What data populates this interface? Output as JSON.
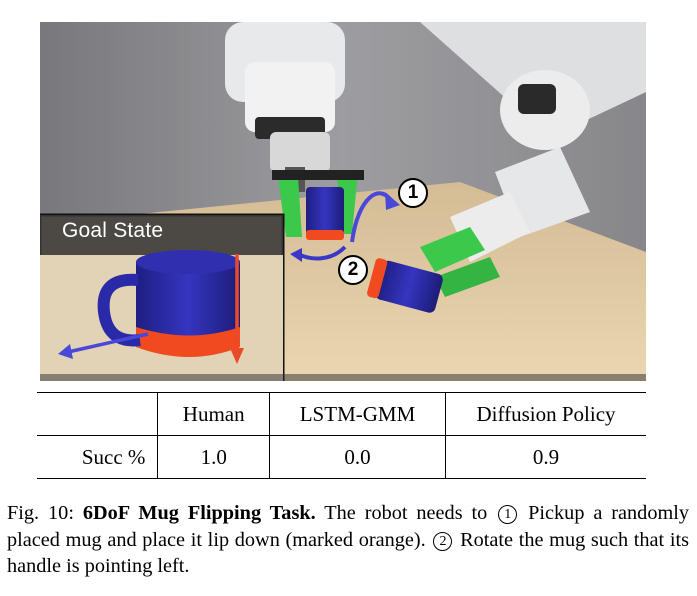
{
  "figure": {
    "photo": {
      "goal_label": "Goal State",
      "step_1": "1",
      "step_2": "2"
    },
    "table": {
      "headers": [
        "",
        "Human",
        "LSTM-GMM",
        "Diffusion Policy"
      ],
      "rows": [
        {
          "label": "Succ %",
          "human": "1.0",
          "lstm_gmm": "0.0",
          "diffusion_policy": "0.9"
        }
      ]
    },
    "caption": {
      "prefix": "Fig. 10: ",
      "title": "6DoF Mug Flipping Task.",
      "text_a": " The robot needs to ",
      "step_1_mark": "1",
      "text_b": " Pickup a randomly placed mug and place it lip down (marked orange). ",
      "step_2_mark": "2",
      "text_c": " Rotate the mug such that its handle is pointing left."
    }
  },
  "colors": {
    "mug_blue": "#2a2aa8",
    "lip_orange": "#f04a1e",
    "arrow_blue": "#4a48d8",
    "arrow_red": "#ea4a2a",
    "gripper_green": "#3cc84a",
    "table_wood": "#e3cfa8"
  }
}
